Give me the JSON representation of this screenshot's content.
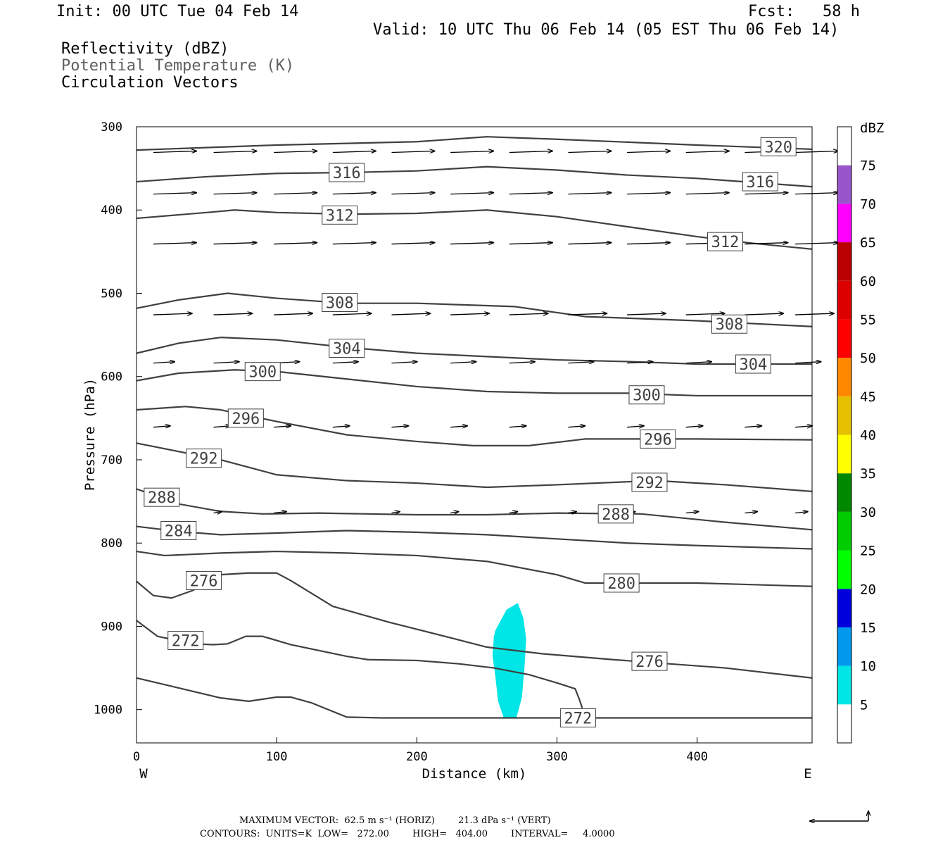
{
  "header": {
    "init": "Init: 00 UTC Tue 04 Feb 14",
    "fcst": "Fcst:   58 h",
    "valid": "Valid: 10 UTC Thu 06 Feb 14 (05 EST Thu 06 Feb 14)"
  },
  "legend_labels": {
    "reflectivity": "Reflectivity (dBZ)",
    "theta": "Potential Temperature (K)",
    "vectors": "Circulation Vectors"
  },
  "colorbar": {
    "unit": "dBZ",
    "ticks": [
      "5",
      "10",
      "15",
      "20",
      "25",
      "30",
      "35",
      "40",
      "45",
      "50",
      "55",
      "60",
      "65",
      "70",
      "75"
    ],
    "colors": [
      "#00e5e5",
      "#0099ee",
      "#0000dd",
      "#00ff00",
      "#00cc00",
      "#008800",
      "#ffff00",
      "#e5c000",
      "#ff8800",
      "#ff0000",
      "#dd0000",
      "#bb0000",
      "#ff00ff",
      "#9955cc",
      "#ffffff"
    ]
  },
  "footer": {
    "max_vector": "MAXIMUM VECTOR:  62.5 m s⁻¹ (HORIZ)        21.3 dPa s⁻¹ (VERT)",
    "contours": "CONTOURS:  UNITS=K  LOW=   272.00        HIGH=   404.00        INTERVAL=     4.0000"
  },
  "chart_data": {
    "type": "line",
    "title": "",
    "xlabel": "Distance (km)",
    "ylabel": "Pressure (hPa)",
    "xlim": [
      0,
      482
    ],
    "ylim": [
      1040,
      300
    ],
    "x_ticks": [
      "0",
      "100",
      "200",
      "300",
      "400"
    ],
    "y_ticks": [
      "300",
      "400",
      "500",
      "600",
      "700",
      "800",
      "900",
      "1000"
    ],
    "x_end_labels": {
      "left": "W",
      "right": "E"
    },
    "contour_color": "#404040",
    "contour_series": [
      {
        "name": "320",
        "x": [
          0,
          100,
          200,
          250,
          300,
          400,
          482
        ],
        "y": [
          328,
          322,
          318,
          312,
          315,
          322,
          327
        ],
        "label_x": 458,
        "label_y": 324
      },
      {
        "name": "316",
        "x": [
          0,
          50,
          100,
          150,
          200,
          250,
          300,
          350,
          400,
          482
        ],
        "y": [
          366,
          360,
          356,
          355,
          353,
          348,
          352,
          358,
          362,
          372
        ],
        "label_x": 150,
        "label_y": 355
      },
      {
        "name": "316",
        "x": [
          0,
          50,
          100,
          150,
          200,
          250,
          300,
          350,
          400,
          482
        ],
        "y": [
          366,
          360,
          356,
          355,
          353,
          348,
          352,
          358,
          362,
          372
        ],
        "label_x": 445,
        "label_y": 366
      },
      {
        "name": "312",
        "x": [
          0,
          50,
          70,
          100,
          150,
          200,
          250,
          300,
          350,
          400,
          440,
          482
        ],
        "y": [
          410,
          403,
          400,
          403,
          405,
          404,
          400,
          408,
          420,
          432,
          440,
          447
        ],
        "label_x": 145,
        "label_y": 406
      },
      {
        "name": "312",
        "x": [
          0,
          50,
          70,
          100,
          150,
          200,
          250,
          300,
          350,
          400,
          440,
          482
        ],
        "y": [
          410,
          403,
          400,
          403,
          405,
          404,
          400,
          408,
          420,
          432,
          440,
          447
        ],
        "label_x": 420,
        "label_y": 438
      },
      {
        "name": "308",
        "x": [
          0,
          30,
          65,
          100,
          150,
          200,
          270,
          320,
          400,
          482
        ],
        "y": [
          518,
          508,
          500,
          506,
          512,
          512,
          516,
          528,
          533,
          540
        ],
        "label_x": 145,
        "label_y": 511
      },
      {
        "name": "308",
        "x": [
          0,
          30,
          65,
          100,
          150,
          200,
          270,
          320,
          400,
          482
        ],
        "y": [
          518,
          508,
          500,
          506,
          512,
          512,
          516,
          528,
          533,
          540
        ],
        "label_x": 423,
        "label_y": 537
      },
      {
        "name": "304",
        "x": [
          0,
          30,
          60,
          100,
          150,
          200,
          250,
          300,
          350,
          400,
          482
        ],
        "y": [
          572,
          560,
          553,
          556,
          565,
          572,
          576,
          580,
          582,
          585,
          585
        ],
        "label_x": 150,
        "label_y": 566
      },
      {
        "name": "304",
        "x": [
          0,
          30,
          60,
          100,
          150,
          200,
          250,
          300,
          350,
          400,
          482
        ],
        "y": [
          572,
          560,
          553,
          556,
          565,
          572,
          576,
          580,
          582,
          585,
          585
        ],
        "label_x": 440,
        "label_y": 585
      },
      {
        "name": "300",
        "x": [
          0,
          30,
          70,
          100,
          150,
          200,
          250,
          300,
          350,
          400,
          482
        ],
        "y": [
          605,
          596,
          592,
          594,
          603,
          612,
          618,
          620,
          620,
          623,
          623
        ],
        "label_x": 90,
        "label_y": 594
      },
      {
        "name": "300",
        "x": [
          0,
          30,
          70,
          100,
          150,
          200,
          250,
          300,
          350,
          400,
          482
        ],
        "y": [
          605,
          596,
          592,
          594,
          603,
          612,
          618,
          620,
          620,
          623,
          623
        ],
        "label_x": 364,
        "label_y": 622
      },
      {
        "name": "296",
        "x": [
          0,
          35,
          60,
          100,
          150,
          200,
          240,
          280,
          320,
          400,
          482
        ],
        "y": [
          640,
          636,
          640,
          654,
          670,
          678,
          683,
          683,
          675,
          675,
          676
        ],
        "label_x": 78,
        "label_y": 650
      },
      {
        "name": "296",
        "x": [
          0,
          35,
          60,
          100,
          150,
          200,
          240,
          280,
          320,
          400,
          482
        ],
        "y": [
          640,
          636,
          640,
          654,
          670,
          678,
          683,
          683,
          675,
          675,
          676
        ],
        "label_x": 372,
        "label_y": 675
      },
      {
        "name": "292",
        "x": [
          0,
          30,
          60,
          100,
          150,
          200,
          250,
          300,
          370,
          420,
          482
        ],
        "y": [
          680,
          690,
          700,
          718,
          725,
          728,
          733,
          730,
          725,
          730,
          738
        ],
        "label_x": 48,
        "label_y": 698
      },
      {
        "name": "292",
        "x": [
          0,
          30,
          60,
          100,
          150,
          200,
          250,
          300,
          370,
          420,
          482
        ],
        "y": [
          680,
          690,
          700,
          718,
          725,
          728,
          733,
          730,
          725,
          730,
          738
        ],
        "label_x": 366,
        "label_y": 727
      },
      {
        "name": "288",
        "x": [
          0,
          30,
          60,
          90,
          130,
          200,
          250,
          300,
          360,
          420,
          482
        ],
        "y": [
          735,
          753,
          762,
          765,
          764,
          766,
          766,
          764,
          765,
          775,
          784
        ],
        "label_x": 18,
        "label_y": 745
      },
      {
        "name": "288",
        "x": [
          0,
          30,
          60,
          90,
          130,
          200,
          250,
          300,
          360,
          420,
          482
        ],
        "y": [
          735,
          753,
          762,
          765,
          764,
          766,
          766,
          764,
          765,
          775,
          784
        ],
        "label_x": 342,
        "label_y": 765
      },
      {
        "name": "284",
        "x": [
          0,
          30,
          60,
          100,
          150,
          200,
          250,
          300,
          350,
          400,
          482
        ],
        "y": [
          780,
          786,
          790,
          788,
          785,
          787,
          790,
          795,
          800,
          803,
          807
        ],
        "label_x": 30,
        "label_y": 785
      },
      {
        "name": "280",
        "x": [
          0,
          20,
          60,
          100,
          150,
          200,
          250,
          300,
          320,
          350,
          400,
          482
        ],
        "y": [
          810,
          815,
          812,
          810,
          812,
          815,
          822,
          838,
          848,
          848,
          848,
          852
        ],
        "label_x": 346,
        "label_y": 848
      },
      {
        "name": "276",
        "x": [
          0,
          12,
          25,
          40,
          60,
          80,
          100,
          110,
          140,
          180,
          220,
          250,
          290,
          340,
          380,
          420,
          482
        ],
        "y": [
          846,
          863,
          866,
          857,
          838,
          836,
          836,
          845,
          876,
          895,
          912,
          925,
          933,
          940,
          945,
          950,
          962
        ],
        "label_x": 48,
        "label_y": 845
      },
      {
        "name": "276",
        "x": [
          0,
          12,
          25,
          40,
          60,
          80,
          100,
          110,
          140,
          180,
          220,
          250,
          290,
          340,
          380,
          420,
          482
        ],
        "y": [
          846,
          863,
          866,
          857,
          838,
          836,
          836,
          845,
          876,
          895,
          912,
          925,
          933,
          940,
          945,
          950,
          962
        ],
        "label_x": 366,
        "label_y": 942
      },
      {
        "name": "272",
        "x": [
          0,
          15,
          40,
          55,
          65,
          78,
          90,
          110,
          150,
          165,
          200,
          230,
          255,
          280,
          300,
          313,
          316,
          318
        ],
        "y": [
          893,
          912,
          921,
          922,
          921,
          912,
          912,
          922,
          936,
          940,
          941,
          945,
          950,
          958,
          968,
          975,
          988,
          998
        ],
        "label_x": 35,
        "label_y": 917
      },
      {
        "name": "272",
        "x": [
          0,
          20,
          60,
          80,
          100,
          110,
          125,
          150,
          175,
          200,
          250,
          300,
          350,
          400,
          482
        ],
        "y": [
          962,
          970,
          986,
          990,
          985,
          985,
          992,
          1009,
          1010,
          1010,
          1010,
          1010,
          1010,
          1010,
          1010
        ],
        "label_x": 315,
        "label_y": 1010
      }
    ],
    "reflectivity_region": {
      "dbz": 5,
      "x": [
        256,
        264,
        272,
        276,
        278,
        277,
        275,
        271,
        262,
        258,
        256,
        254,
        255
      ],
      "y": [
        905,
        880,
        872,
        890,
        915,
        945,
        985,
        1010,
        1010,
        990,
        960,
        935,
        912
      ]
    },
    "vector_rows": [
      {
        "p": 330,
        "x": [
          12,
          55,
          98,
          140,
          182,
          224,
          266,
          308,
          350,
          392,
          434,
          470
        ],
        "u": [
          1,
          1,
          1,
          1,
          1,
          1,
          1,
          1,
          1,
          1,
          1,
          1
        ]
      },
      {
        "p": 380,
        "x": [
          12,
          55,
          98,
          140,
          182,
          224,
          266,
          308,
          350,
          392,
          434,
          470
        ],
        "u": [
          1,
          1,
          1,
          1,
          1,
          1,
          1,
          1,
          1,
          1,
          1,
          1
        ]
      },
      {
        "p": 440,
        "x": [
          12,
          55,
          98,
          140,
          182,
          224,
          266,
          308,
          350,
          392,
          434,
          470
        ],
        "u": [
          1,
          1,
          1,
          1,
          1,
          1,
          1,
          1,
          1,
          1,
          1,
          1
        ]
      },
      {
        "p": 525,
        "x": [
          12,
          55,
          98,
          140,
          182,
          224,
          266,
          308,
          350,
          392,
          434,
          470
        ],
        "u": [
          0.9,
          0.9,
          0.9,
          0.9,
          0.9,
          0.9,
          0.9,
          0.9,
          0.9,
          0.9,
          0.9,
          0.9
        ]
      },
      {
        "p": 583,
        "x": [
          12,
          55,
          98,
          140,
          182,
          224,
          266,
          308,
          350,
          392,
          434,
          470
        ],
        "u": [
          0.5,
          0.6,
          0.6,
          0.6,
          0.6,
          0.6,
          0.6,
          0.6,
          0.6,
          0.6,
          0.6,
          0.6
        ]
      },
      {
        "p": 660,
        "x": [
          12,
          55,
          98,
          140,
          182,
          224,
          266,
          308,
          350,
          392,
          434,
          470
        ],
        "u": [
          0.4,
          0.4,
          0.4,
          0.4,
          0.4,
          0.4,
          0.4,
          0.4,
          0.4,
          0.4,
          0.4,
          0.4
        ]
      },
      {
        "p": 763,
        "x": [
          55,
          98,
          182,
          224,
          266,
          308,
          350,
          392,
          434,
          470
        ],
        "u": [
          0.2,
          0.3,
          0.2,
          0.2,
          0.2,
          0.2,
          0.2,
          0.3,
          0.3,
          0.3
        ]
      }
    ]
  }
}
